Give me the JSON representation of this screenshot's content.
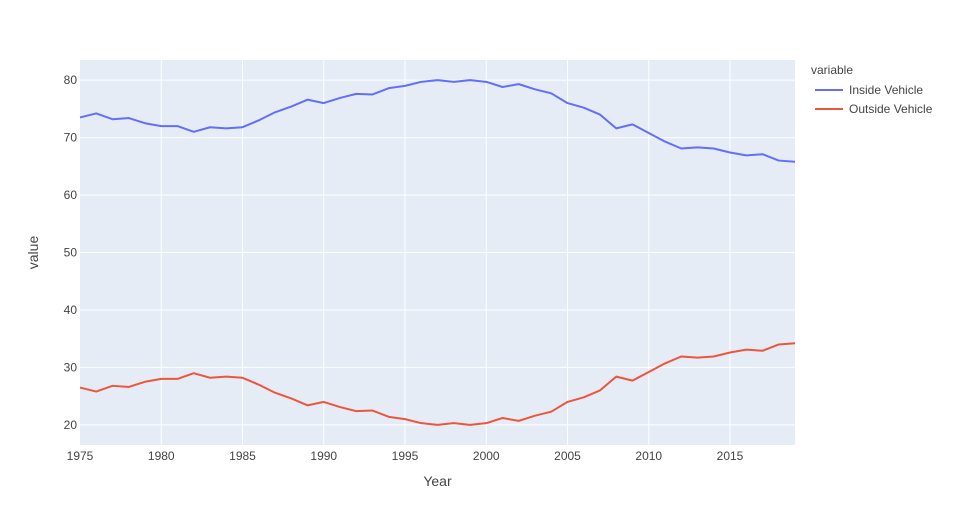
{
  "chart_data": {
    "type": "line",
    "xlabel": "Year",
    "ylabel": "value",
    "xlim": [
      1975,
      2019
    ],
    "ylim": [
      16.5,
      83.5
    ],
    "x_ticks": [
      1975,
      1980,
      1985,
      1990,
      1995,
      2000,
      2005,
      2010,
      2015
    ],
    "y_ticks": [
      20,
      30,
      40,
      50,
      60,
      70,
      80
    ],
    "grid": true,
    "legend": {
      "title": "variable",
      "placement": "top-right"
    },
    "x": [
      1975,
      1976,
      1977,
      1978,
      1979,
      1980,
      1981,
      1982,
      1983,
      1984,
      1985,
      1986,
      1987,
      1988,
      1989,
      1990,
      1991,
      1992,
      1993,
      1994,
      1995,
      1996,
      1997,
      1998,
      1999,
      2000,
      2001,
      2002,
      2003,
      2004,
      2005,
      2006,
      2007,
      2008,
      2009,
      2010,
      2011,
      2012,
      2013,
      2014,
      2015,
      2016,
      2017,
      2018,
      2019
    ],
    "series": [
      {
        "name": "Inside Vehicle",
        "color": "#636efa",
        "values": [
          73.5,
          74.2,
          73.2,
          73.4,
          72.5,
          72.0,
          72.0,
          71.0,
          71.8,
          71.6,
          71.8,
          73.0,
          74.4,
          75.4,
          76.6,
          76.0,
          76.9,
          77.6,
          77.5,
          78.6,
          79.0,
          79.7,
          80.0,
          79.7,
          80.0,
          79.7,
          78.8,
          79.3,
          78.4,
          77.7,
          76.0,
          75.2,
          74.0,
          71.6,
          72.3,
          70.8,
          69.3,
          68.1,
          68.3,
          68.1,
          67.4,
          66.9,
          67.1,
          66.0,
          65.8
        ]
      },
      {
        "name": "Outside Vehicle",
        "color": "#ef553b",
        "values": [
          26.5,
          25.8,
          26.8,
          26.6,
          27.5,
          28.0,
          28.0,
          29.0,
          28.2,
          28.4,
          28.2,
          27.0,
          25.6,
          24.6,
          23.4,
          24.0,
          23.1,
          22.4,
          22.5,
          21.4,
          21.0,
          20.3,
          20.0,
          20.3,
          20.0,
          20.3,
          21.2,
          20.7,
          21.6,
          22.3,
          24.0,
          24.8,
          26.0,
          28.4,
          27.7,
          29.2,
          30.7,
          31.9,
          31.7,
          31.9,
          32.6,
          33.1,
          32.9,
          34.0,
          34.2
        ]
      }
    ]
  }
}
